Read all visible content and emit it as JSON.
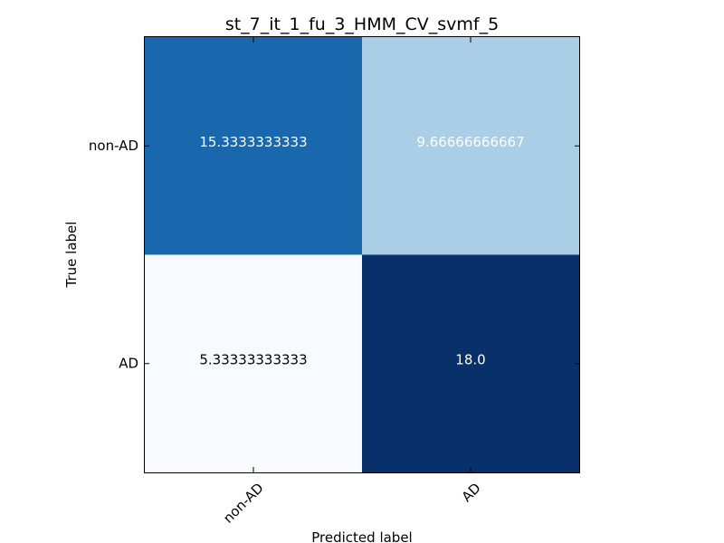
{
  "chart_data": {
    "type": "heatmap",
    "title": "st_7_it_1_fu_3_HMM_CV_svmf_5",
    "xlabel": "Predicted label",
    "ylabel": "True label",
    "x_categories": [
      "non-AD",
      "AD"
    ],
    "y_categories": [
      "non-AD",
      "AD"
    ],
    "values": [
      [
        15.3333333333,
        9.66666666667
      ],
      [
        5.33333333333,
        18.0
      ]
    ],
    "value_labels": [
      [
        "15.3333333333",
        "9.66666666667"
      ],
      [
        "5.33333333333",
        "18.0"
      ]
    ],
    "colormap": "Blues",
    "vmin": 5.33333333333,
    "vmax": 18.0,
    "colors": {
      "text_light": "#ffffff",
      "text_dark": "#000000",
      "frame": "#000000"
    }
  }
}
